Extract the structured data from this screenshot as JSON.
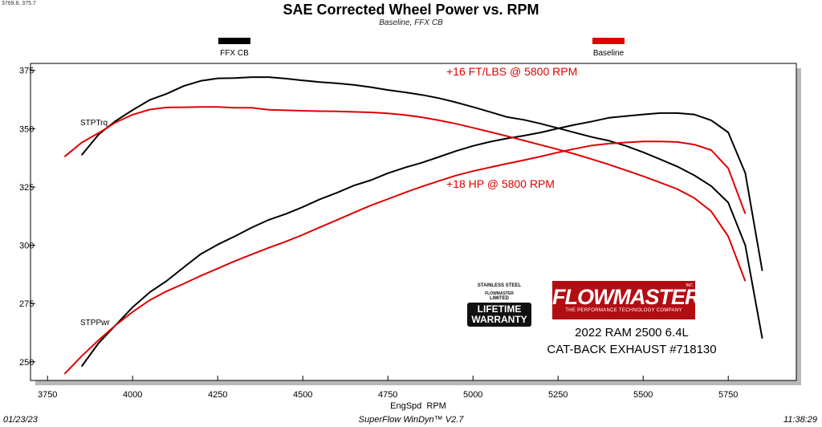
{
  "header": {
    "coords_readout": "3769.8, 375.7",
    "title": "SAE Corrected Wheel Power vs. RPM",
    "subtitle": "Baseline, FFX CB"
  },
  "footer": {
    "date": "01/23/23",
    "software": "SuperFlow WinDyn™ V2.7",
    "time": "11:38:29"
  },
  "branding": {
    "logo_text": "FLOWMASTER",
    "logo_tagline": "THE PERFORMANCE TECHNOLOGY COMPANY",
    "logo_reg": "INC",
    "badge_top": "STAINLESS STEEL",
    "badge_brand": "FLOWMASTER",
    "badge_limited": "LIMITED",
    "badge_line1": "LIFETIME",
    "badge_line2": "WARRANTY",
    "vehicle": "2022 RAM 2500 6.4L",
    "product": "CAT-BACK EXHAUST #718130",
    "logo_color": "#b30d14"
  },
  "chart_data": {
    "type": "line",
    "title": "SAE Corrected Wheel Power vs. RPM",
    "subtitle": "Baseline, FFX CB",
    "xlabel": "EngSpd  RPM",
    "ylabel": "",
    "xlim": [
      3700,
      5950
    ],
    "ylim": [
      242,
      378
    ],
    "xticks": [
      3750,
      4000,
      4250,
      4500,
      4750,
      5000,
      5250,
      5500,
      5750
    ],
    "yticks": [
      250,
      275,
      300,
      325,
      350,
      375
    ],
    "grid": false,
    "legend_position": "top",
    "legend": [
      {
        "name": "FFX CB",
        "color": "#000000"
      },
      {
        "name": "Baseline",
        "color": "#e00000"
      }
    ],
    "curve_labels": [
      "STPTrq",
      "STPPwr"
    ],
    "annotations": [
      "+16 FT/LBS @ 5800 RPM",
      "+18 HP @ 5800 RPM"
    ],
    "annotation_color": "#e00000",
    "series": [
      {
        "name": "FFX CB",
        "measure": "STPTrq",
        "color": "#000000",
        "x": [
          3850,
          3900,
          3950,
          4000,
          4050,
          4100,
          4150,
          4200,
          4250,
          4300,
          4350,
          4400,
          4450,
          4500,
          4550,
          4600,
          4650,
          4700,
          4750,
          4800,
          4850,
          4900,
          4950,
          5000,
          5050,
          5100,
          5150,
          5200,
          5250,
          5300,
          5350,
          5400,
          5450,
          5500,
          5550,
          5600,
          5650,
          5700,
          5750,
          5800,
          5850
        ],
        "y": [
          338.6,
          347.5,
          353.3,
          358.0,
          362.3,
          365.0,
          368.3,
          370.5,
          371.6,
          371.7,
          372.1,
          372.1,
          371.5,
          370.7,
          370.0,
          369.5,
          368.8,
          367.8,
          366.6,
          365.6,
          364.5,
          363.1,
          361.3,
          359.3,
          357.2,
          355.0,
          353.8,
          352.1,
          350.2,
          348.3,
          346.4,
          344.8,
          342.6,
          339.9,
          336.9,
          333.8,
          330.0,
          325.4,
          318.3,
          300.0,
          260.0
        ]
      },
      {
        "name": "FFX CB",
        "measure": "STPPwr",
        "color": "#000000",
        "x": [
          3850,
          3900,
          3950,
          4000,
          4050,
          4100,
          4150,
          4200,
          4250,
          4300,
          4350,
          4400,
          4450,
          4500,
          4550,
          4600,
          4650,
          4700,
          4750,
          4800,
          4850,
          4900,
          4950,
          5000,
          5050,
          5100,
          5150,
          5200,
          5250,
          5300,
          5350,
          5400,
          5450,
          5500,
          5550,
          5600,
          5650,
          5700,
          5750,
          5800,
          5850
        ],
        "y": [
          248.0,
          258.0,
          265.7,
          273.4,
          279.8,
          284.7,
          290.5,
          296.2,
          300.3,
          303.8,
          307.6,
          310.9,
          313.4,
          316.4,
          319.7,
          322.5,
          325.6,
          327.9,
          330.9,
          333.3,
          335.4,
          337.9,
          340.4,
          342.6,
          344.4,
          345.8,
          347.0,
          348.4,
          350.1,
          351.7,
          353.1,
          354.7,
          355.4,
          356.1,
          356.7,
          356.7,
          356.1,
          353.6,
          348.4,
          331.0,
          289.0
        ]
      },
      {
        "name": "Baseline",
        "measure": "STPTrq",
        "color": "#e00000",
        "x": [
          3800,
          3850,
          3900,
          3950,
          4000,
          4050,
          4100,
          4150,
          4200,
          4250,
          4300,
          4350,
          4400,
          4450,
          4500,
          4550,
          4600,
          4650,
          4700,
          4750,
          4800,
          4850,
          4900,
          4950,
          5000,
          5050,
          5100,
          5150,
          5200,
          5250,
          5300,
          5350,
          5400,
          5450,
          5500,
          5550,
          5600,
          5650,
          5700,
          5750,
          5800
        ],
        "y": [
          338.0,
          344.0,
          348.1,
          352.7,
          356.0,
          358.2,
          359.1,
          359.2,
          359.3,
          359.3,
          359.0,
          359.0,
          358.1,
          357.9,
          357.7,
          357.5,
          357.4,
          357.2,
          357.0,
          356.6,
          355.9,
          354.9,
          353.6,
          352.1,
          350.4,
          348.6,
          346.8,
          344.9,
          343.0,
          341.1,
          339.1,
          336.9,
          334.6,
          332.1,
          329.6,
          326.9,
          324.1,
          320.3,
          314.5,
          303.8,
          284.6
        ]
      },
      {
        "name": "Baseline",
        "measure": "STPPwr",
        "color": "#e00000",
        "x": [
          3800,
          3850,
          3900,
          3950,
          4000,
          4050,
          4100,
          4150,
          4200,
          4250,
          4300,
          4350,
          4400,
          4450,
          4500,
          4550,
          4600,
          4650,
          4700,
          4750,
          4800,
          4850,
          4900,
          4950,
          5000,
          5050,
          5100,
          5150,
          5200,
          5250,
          5300,
          5350,
          5400,
          5450,
          5500,
          5550,
          5600,
          5650,
          5700,
          5750,
          5800
        ],
        "y": [
          244.8,
          252.4,
          259.3,
          265.7,
          271.4,
          276.4,
          280.3,
          283.5,
          286.9,
          290.0,
          293.2,
          296.1,
          298.9,
          301.6,
          304.5,
          307.7,
          310.8,
          314.0,
          317.1,
          319.8,
          322.6,
          325.2,
          327.6,
          329.9,
          331.8,
          333.4,
          335.0,
          336.5,
          338.1,
          339.8,
          341.4,
          342.8,
          343.6,
          344.1,
          344.5,
          344.5,
          344.3,
          343.2,
          340.8,
          333.0,
          313.5
        ]
      }
    ]
  }
}
